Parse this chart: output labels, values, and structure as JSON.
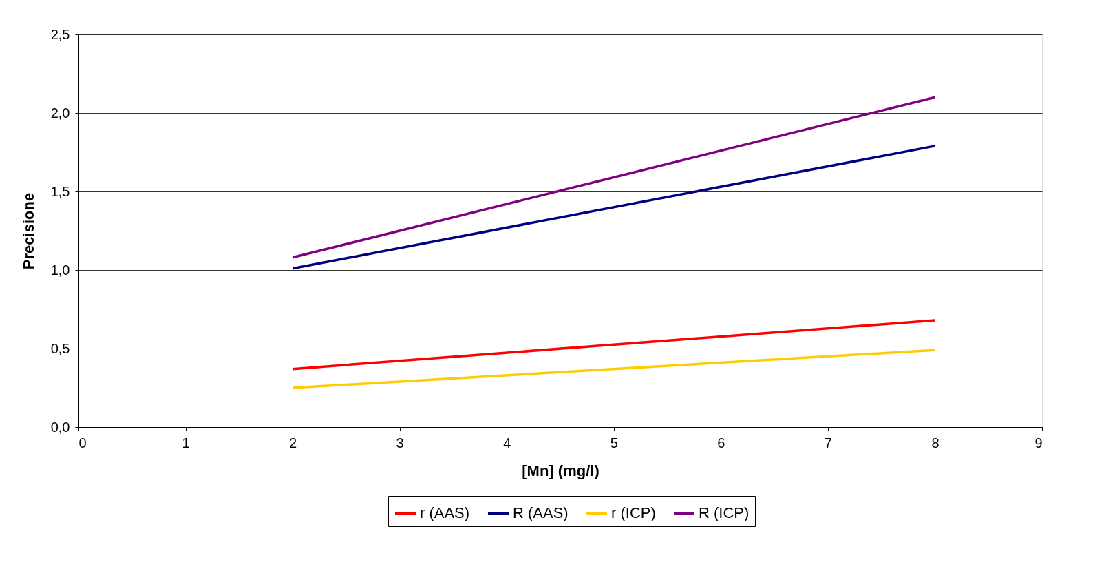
{
  "chart_data": {
    "type": "line",
    "xlabel": "[Mn] (mg/l)",
    "ylabel": "Precisione",
    "xlim": [
      0,
      9
    ],
    "xticks": [
      0,
      1,
      2,
      3,
      4,
      5,
      6,
      7,
      8,
      9
    ],
    "ylim": [
      0,
      2.5
    ],
    "yticks": [
      {
        "value": 0,
        "label": "0,0"
      },
      {
        "value": 0.5,
        "label": "0,5"
      },
      {
        "value": 1,
        "label": "1,0"
      },
      {
        "value": 1.5,
        "label": "1,5"
      },
      {
        "value": 2,
        "label": "2,0"
      },
      {
        "value": 2.5,
        "label": "2,5"
      }
    ],
    "x": [
      2,
      8
    ],
    "grid": "y",
    "legend": "bottom",
    "marker": "none",
    "line_style": "solid",
    "series": [
      {
        "name": "r (AAS)",
        "color": "#ff0000",
        "values": [
          0.37,
          0.68
        ]
      },
      {
        "name": "R (AAS)",
        "color": "#000080",
        "values": [
          1.01,
          1.79
        ]
      },
      {
        "name": "r (ICP)",
        "color": "#ffcc00",
        "values": [
          0.25,
          0.49
        ]
      },
      {
        "name": "R (ICP)",
        "color": "#800080",
        "values": [
          1.08,
          2.1
        ]
      }
    ]
  }
}
